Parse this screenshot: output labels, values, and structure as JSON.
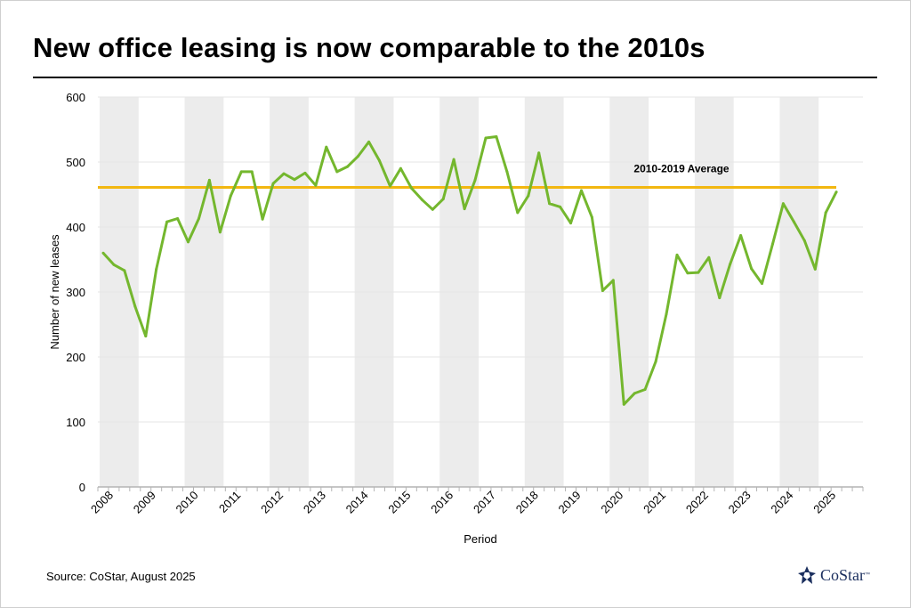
{
  "title": "New office leasing is now comparable to the 2010s",
  "source": "Source: CoStar, August 2025",
  "logo": {
    "name": "CoStar",
    "trademark": "™"
  },
  "colors": {
    "line": "#74b72e",
    "average": "#f2b711",
    "band": "#ececec",
    "grid": "#e6e6e6",
    "axis": "#b4b4b4",
    "logo": "#1b2f5e"
  },
  "chart_data": {
    "type": "line",
    "title": "New office leasing is now comparable to the 2010s",
    "xlabel": "Period",
    "ylabel": "Number of new leases",
    "ylim": [
      0,
      600
    ],
    "yticks": [
      0,
      100,
      200,
      300,
      400,
      500,
      600
    ],
    "x_year_labels": [
      "2008",
      "2009",
      "2010",
      "2011",
      "2012",
      "2013",
      "2014",
      "2015",
      "2016",
      "2017",
      "2018",
      "2019",
      "2020",
      "2021",
      "2022",
      "2023",
      "2024",
      "2025"
    ],
    "x_start_year": 2008,
    "x_end_year": 2026,
    "frequency": "quarterly",
    "series": [
      {
        "name": "New leases",
        "periods": [
          "2008 Q1",
          "2008 Q2",
          "2008 Q3",
          "2008 Q4",
          "2009 Q1",
          "2009 Q2",
          "2009 Q3",
          "2009 Q4",
          "2010 Q1",
          "2010 Q2",
          "2010 Q3",
          "2010 Q4",
          "2011 Q1",
          "2011 Q2",
          "2011 Q3",
          "2011 Q4",
          "2012 Q1",
          "2012 Q2",
          "2012 Q3",
          "2012 Q4",
          "2013 Q1",
          "2013 Q2",
          "2013 Q3",
          "2013 Q4",
          "2014 Q1",
          "2014 Q2",
          "2014 Q3",
          "2014 Q4",
          "2015 Q1",
          "2015 Q2",
          "2015 Q3",
          "2015 Q4",
          "2016 Q1",
          "2016 Q2",
          "2016 Q3",
          "2016 Q4",
          "2017 Q1",
          "2017 Q2",
          "2017 Q3",
          "2017 Q4",
          "2018 Q1",
          "2018 Q2",
          "2018 Q3",
          "2018 Q4",
          "2019 Q1",
          "2019 Q2",
          "2019 Q3",
          "2019 Q4",
          "2020 Q1",
          "2020 Q2",
          "2020 Q3",
          "2020 Q4",
          "2021 Q1",
          "2021 Q2",
          "2021 Q3",
          "2021 Q4",
          "2022 Q1",
          "2022 Q2",
          "2022 Q3",
          "2022 Q4",
          "2023 Q1",
          "2023 Q2",
          "2023 Q3",
          "2023 Q4",
          "2024 Q1",
          "2024 Q2",
          "2024 Q3",
          "2024 Q4",
          "2025 Q1",
          "2025 Q2"
        ],
        "values": [
          360,
          342,
          333,
          278,
          232,
          335,
          408,
          413,
          377,
          413,
          472,
          392,
          448,
          485,
          485,
          412,
          467,
          482,
          473,
          483,
          464,
          523,
          485,
          493,
          509,
          531,
          502,
          463,
          490,
          460,
          442,
          427,
          443,
          504,
          428,
          472,
          537,
          539,
          485,
          422,
          448,
          514,
          436,
          431,
          406,
          456,
          415,
          302,
          318,
          127,
          144,
          150,
          193,
          266,
          357,
          329,
          330,
          353,
          291,
          343,
          387,
          336,
          313,
          374,
          436,
          408,
          379,
          335,
          422,
          454
        ]
      }
    ],
    "reference_lines": [
      {
        "name": "2010-2019 Average",
        "value": 461
      }
    ],
    "shaded_bands": "alternating years shaded (2008, 2010, 2012, ... 2024)"
  }
}
